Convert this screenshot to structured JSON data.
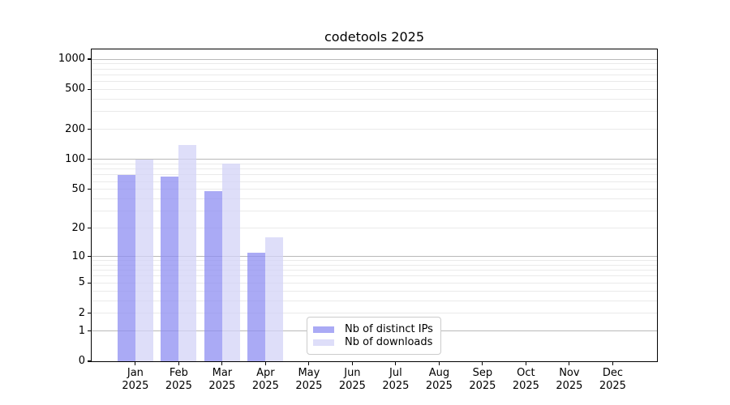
{
  "title": "codetools 2025",
  "chart_data": {
    "type": "bar",
    "title": "codetools 2025",
    "y_scale": "log1p",
    "grid": "on",
    "legend_position": "lower center",
    "categories": [
      "Jan",
      "Feb",
      "Mar",
      "Apr",
      "May",
      "Jun",
      "Jul",
      "Aug",
      "Sep",
      "Oct",
      "Nov",
      "Dec"
    ],
    "category_year": "2025",
    "series": [
      {
        "name": "Nb of distinct IPs",
        "color": "rgba(142,142,242,0.75)",
        "values": [
          70,
          67,
          48,
          11,
          0,
          0,
          0,
          0,
          0,
          0,
          0,
          0
        ]
      },
      {
        "name": "Nb of downloads",
        "color": "rgba(211,211,247,0.75)",
        "values": [
          100,
          140,
          90,
          16,
          0,
          0,
          0,
          0,
          0,
          0,
          0,
          0
        ]
      }
    ],
    "y_ticks": [
      0,
      1,
      2,
      5,
      10,
      20,
      50,
      100,
      200,
      500,
      1000
    ],
    "y_major_gridlines": [
      1,
      10,
      100,
      1000
    ],
    "y_minor_gridlines": [
      2,
      3,
      4,
      5,
      6,
      7,
      8,
      9,
      20,
      30,
      40,
      50,
      60,
      70,
      80,
      90,
      200,
      300,
      400,
      500,
      600,
      700,
      800,
      900
    ],
    "ylim": [
      0,
      1250
    ],
    "colors": {
      "major_grid": "#b9b9b9",
      "minor_grid": "#eaeaea",
      "axis": "#000000",
      "text": "#000000",
      "background": "#ffffff"
    }
  }
}
